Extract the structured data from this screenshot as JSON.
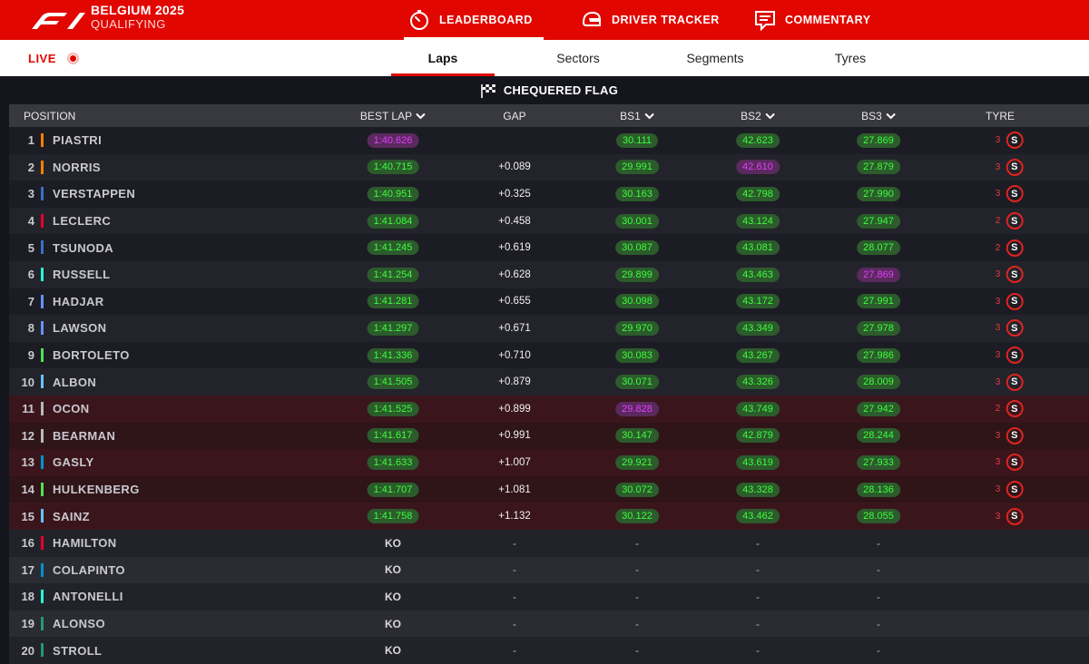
{
  "header": {
    "event_title": "BELGIUM 2025",
    "session": "QUALIFYING",
    "nav": [
      {
        "label": "LEADERBOARD",
        "icon": "stopwatch-icon"
      },
      {
        "label": "DRIVER TRACKER",
        "icon": "helmet-icon"
      },
      {
        "label": "COMMENTARY",
        "icon": "chat-icon"
      }
    ],
    "brand_color": "#e10600"
  },
  "subnav": {
    "live_label": "LIVE",
    "tabs": [
      {
        "label": "Laps",
        "active": true
      },
      {
        "label": "Sectors",
        "active": false
      },
      {
        "label": "Segments",
        "active": false
      },
      {
        "label": "Tyres",
        "active": false
      }
    ]
  },
  "status": {
    "flag_label": "CHEQUERED FLAG",
    "icon": "chequered-flag-icon"
  },
  "table": {
    "columns": {
      "position": "POSITION",
      "best_lap": "BEST LAP",
      "gap": "GAP",
      "bs1": "BS1",
      "bs2": "BS2",
      "bs3": "BS3",
      "tyre": "TYRE"
    },
    "rows": [
      {
        "pos": "1",
        "name": "PIASTRI",
        "team_color": "#ff8000",
        "best_lap": "1:40.626",
        "gap": "",
        "bs1": "30.111",
        "bs2": "42.623",
        "bs3": "27.869",
        "tyre_laps": "3",
        "tyre": "S",
        "best_purple": true,
        "bs1_purple": false,
        "bs2_purple": false,
        "bs3_purple": false
      },
      {
        "pos": "2",
        "name": "NORRIS",
        "team_color": "#ff8000",
        "best_lap": "1:40.715",
        "gap": "+0.089",
        "bs1": "29.991",
        "bs2": "42.610",
        "bs3": "27.879",
        "tyre_laps": "3",
        "tyre": "S",
        "best_purple": false,
        "bs1_purple": false,
        "bs2_purple": true,
        "bs3_purple": false
      },
      {
        "pos": "3",
        "name": "VERSTAPPEN",
        "team_color": "#3671c6",
        "best_lap": "1:40.951",
        "gap": "+0.325",
        "bs1": "30.163",
        "bs2": "42.798",
        "bs3": "27.990",
        "tyre_laps": "3",
        "tyre": "S"
      },
      {
        "pos": "4",
        "name": "LECLERC",
        "team_color": "#e8002d",
        "best_lap": "1:41.084",
        "gap": "+0.458",
        "bs1": "30.001",
        "bs2": "43.124",
        "bs3": "27.947",
        "tyre_laps": "2",
        "tyre": "S"
      },
      {
        "pos": "5",
        "name": "TSUNODA",
        "team_color": "#3671c6",
        "best_lap": "1:41.245",
        "gap": "+0.619",
        "bs1": "30.087",
        "bs2": "43.081",
        "bs3": "28.077",
        "tyre_laps": "2",
        "tyre": "S"
      },
      {
        "pos": "6",
        "name": "RUSSELL",
        "team_color": "#27f4d2",
        "best_lap": "1:41.254",
        "gap": "+0.628",
        "bs1": "29.899",
        "bs2": "43.463",
        "bs3": "27.869",
        "tyre_laps": "3",
        "tyre": "S",
        "bs3_purple": true
      },
      {
        "pos": "7",
        "name": "HADJAR",
        "team_color": "#6692ff",
        "best_lap": "1:41.281",
        "gap": "+0.655",
        "bs1": "30.098",
        "bs2": "43.172",
        "bs3": "27.991",
        "tyre_laps": "3",
        "tyre": "S"
      },
      {
        "pos": "8",
        "name": "LAWSON",
        "team_color": "#6692ff",
        "best_lap": "1:41.297",
        "gap": "+0.671",
        "bs1": "29.970",
        "bs2": "43.349",
        "bs3": "27.978",
        "tyre_laps": "3",
        "tyre": "S"
      },
      {
        "pos": "9",
        "name": "BORTOLETO",
        "team_color": "#52e252",
        "best_lap": "1:41.336",
        "gap": "+0.710",
        "bs1": "30.083",
        "bs2": "43.267",
        "bs3": "27.986",
        "tyre_laps": "3",
        "tyre": "S"
      },
      {
        "pos": "10",
        "name": "ALBON",
        "team_color": "#64c4ff",
        "best_lap": "1:41.505",
        "gap": "+0.879",
        "bs1": "30.071",
        "bs2": "43.326",
        "bs3": "28.009",
        "tyre_laps": "3",
        "tyre": "S"
      },
      {
        "pos": "11",
        "name": "OCON",
        "team_color": "#b6babd",
        "best_lap": "1:41.525",
        "gap": "+0.899",
        "bs1": "29.828",
        "bs2": "43.749",
        "bs3": "27.942",
        "tyre_laps": "2",
        "tyre": "S",
        "bs1_purple": true,
        "eliminated_q2": true
      },
      {
        "pos": "12",
        "name": "BEARMAN",
        "team_color": "#b6babd",
        "best_lap": "1:41.617",
        "gap": "+0.991",
        "bs1": "30.147",
        "bs2": "42.879",
        "bs3": "28.244",
        "tyre_laps": "3",
        "tyre": "S",
        "eliminated_q2": true
      },
      {
        "pos": "13",
        "name": "GASLY",
        "team_color": "#0093cc",
        "best_lap": "1:41.633",
        "gap": "+1.007",
        "bs1": "29.921",
        "bs2": "43.619",
        "bs3": "27.933",
        "tyre_laps": "3",
        "tyre": "S",
        "eliminated_q2": true
      },
      {
        "pos": "14",
        "name": "HULKENBERG",
        "team_color": "#52e252",
        "best_lap": "1:41.707",
        "gap": "+1.081",
        "bs1": "30.072",
        "bs2": "43.328",
        "bs3": "28.136",
        "tyre_laps": "3",
        "tyre": "S",
        "eliminated_q2": true
      },
      {
        "pos": "15",
        "name": "SAINZ",
        "team_color": "#64c4ff",
        "best_lap": "1:41.758",
        "gap": "+1.132",
        "bs1": "30.122",
        "bs2": "43.462",
        "bs3": "28.055",
        "tyre_laps": "3",
        "tyre": "S",
        "eliminated_q2": true
      },
      {
        "pos": "16",
        "name": "HAMILTON",
        "team_color": "#e8002d",
        "best_lap": "KO",
        "gap": "-",
        "bs1": "-",
        "bs2": "-",
        "bs3": "-",
        "ko": true
      },
      {
        "pos": "17",
        "name": "COLAPINTO",
        "team_color": "#0093cc",
        "best_lap": "KO",
        "gap": "-",
        "bs1": "-",
        "bs2": "-",
        "bs3": "-",
        "ko": true
      },
      {
        "pos": "18",
        "name": "ANTONELLI",
        "team_color": "#27f4d2",
        "best_lap": "KO",
        "gap": "-",
        "bs1": "-",
        "bs2": "-",
        "bs3": "-",
        "ko": true
      },
      {
        "pos": "19",
        "name": "ALONSO",
        "team_color": "#229971",
        "best_lap": "KO",
        "gap": "-",
        "bs1": "-",
        "bs2": "-",
        "bs3": "-",
        "ko": true
      },
      {
        "pos": "20",
        "name": "STROLL",
        "team_color": "#229971",
        "best_lap": "KO",
        "gap": "-",
        "bs1": "-",
        "bs2": "-",
        "bs3": "-",
        "ko": true
      }
    ]
  }
}
